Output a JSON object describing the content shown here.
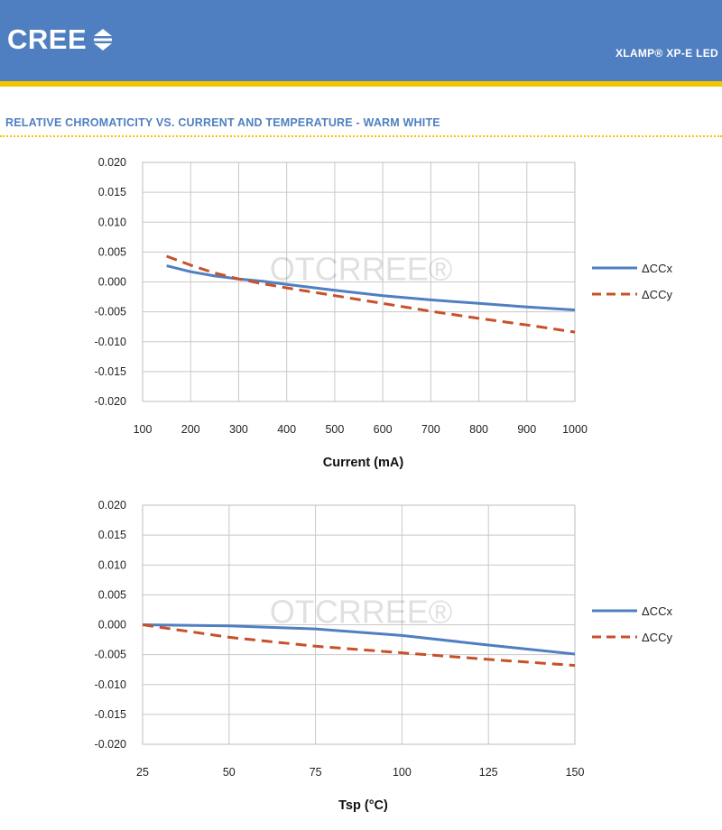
{
  "header": {
    "logo_text": "CREE",
    "product": "XLAMP® XP-E LED",
    "colors": {
      "banner": "#4f7fc1",
      "stripe": "#f5c400"
    }
  },
  "section_title": "RELATIVE CHROMATICITY VS. CURRENT AND TEMPERATURE - WARM WHITE",
  "watermark": "OTCRREE®",
  "chart_data": [
    {
      "type": "line",
      "xlabel": "Current (mA)",
      "ylabel": "",
      "xlim": [
        100,
        1000
      ],
      "ylim": [
        -0.02,
        0.02
      ],
      "xticks": [
        "100",
        "200",
        "300",
        "400",
        "500",
        "600",
        "700",
        "800",
        "900",
        "1000"
      ],
      "yticks": [
        "0.020",
        "0.015",
        "0.010",
        "0.005",
        "0.000",
        "-0.005",
        "-0.010",
        "-0.015",
        "-0.020"
      ],
      "grid": true,
      "legend_position": "right",
      "series": [
        {
          "name": "ΔCCx",
          "style": "solid",
          "color": "#4f7fc1",
          "x": [
            150,
            200,
            250,
            300,
            350,
            400,
            500,
            600,
            700,
            800,
            900,
            1000
          ],
          "y": [
            0.0027,
            0.0017,
            0.001,
            0.0005,
            0.0001,
            -0.0004,
            -0.0014,
            -0.0023,
            -0.003,
            -0.0036,
            -0.0042,
            -0.0047
          ]
        },
        {
          "name": "ΔCCy",
          "style": "dashed",
          "color": "#c8502a",
          "x": [
            150,
            200,
            250,
            300,
            350,
            400,
            500,
            600,
            700,
            800,
            900,
            1000
          ],
          "y": [
            0.0043,
            0.0028,
            0.0015,
            0.0005,
            -0.0003,
            -0.001,
            -0.0023,
            -0.0036,
            -0.0049,
            -0.0061,
            -0.0072,
            -0.0084
          ]
        }
      ]
    },
    {
      "type": "line",
      "xlabel": "Tsp (°C)",
      "ylabel": "",
      "xlim": [
        25,
        150
      ],
      "ylim": [
        -0.02,
        0.02
      ],
      "xticks": [
        "25",
        "50",
        "75",
        "100",
        "125",
        "150"
      ],
      "yticks": [
        "0.020",
        "0.015",
        "0.010",
        "0.005",
        "0.000",
        "-0.005",
        "-0.010",
        "-0.015",
        "-0.020"
      ],
      "grid": true,
      "legend_position": "right",
      "series": [
        {
          "name": "ΔCCx",
          "style": "solid",
          "color": "#4f7fc1",
          "x": [
            25,
            50,
            75,
            100,
            125,
            150
          ],
          "y": [
            0.0,
            -0.0002,
            -0.0007,
            -0.0018,
            -0.0034,
            -0.0049
          ]
        },
        {
          "name": "ΔCCy",
          "style": "dashed",
          "color": "#c8502a",
          "x": [
            25,
            50,
            75,
            100,
            125,
            150
          ],
          "y": [
            0.0,
            -0.0021,
            -0.0036,
            -0.0047,
            -0.0058,
            -0.0068
          ]
        }
      ]
    }
  ]
}
